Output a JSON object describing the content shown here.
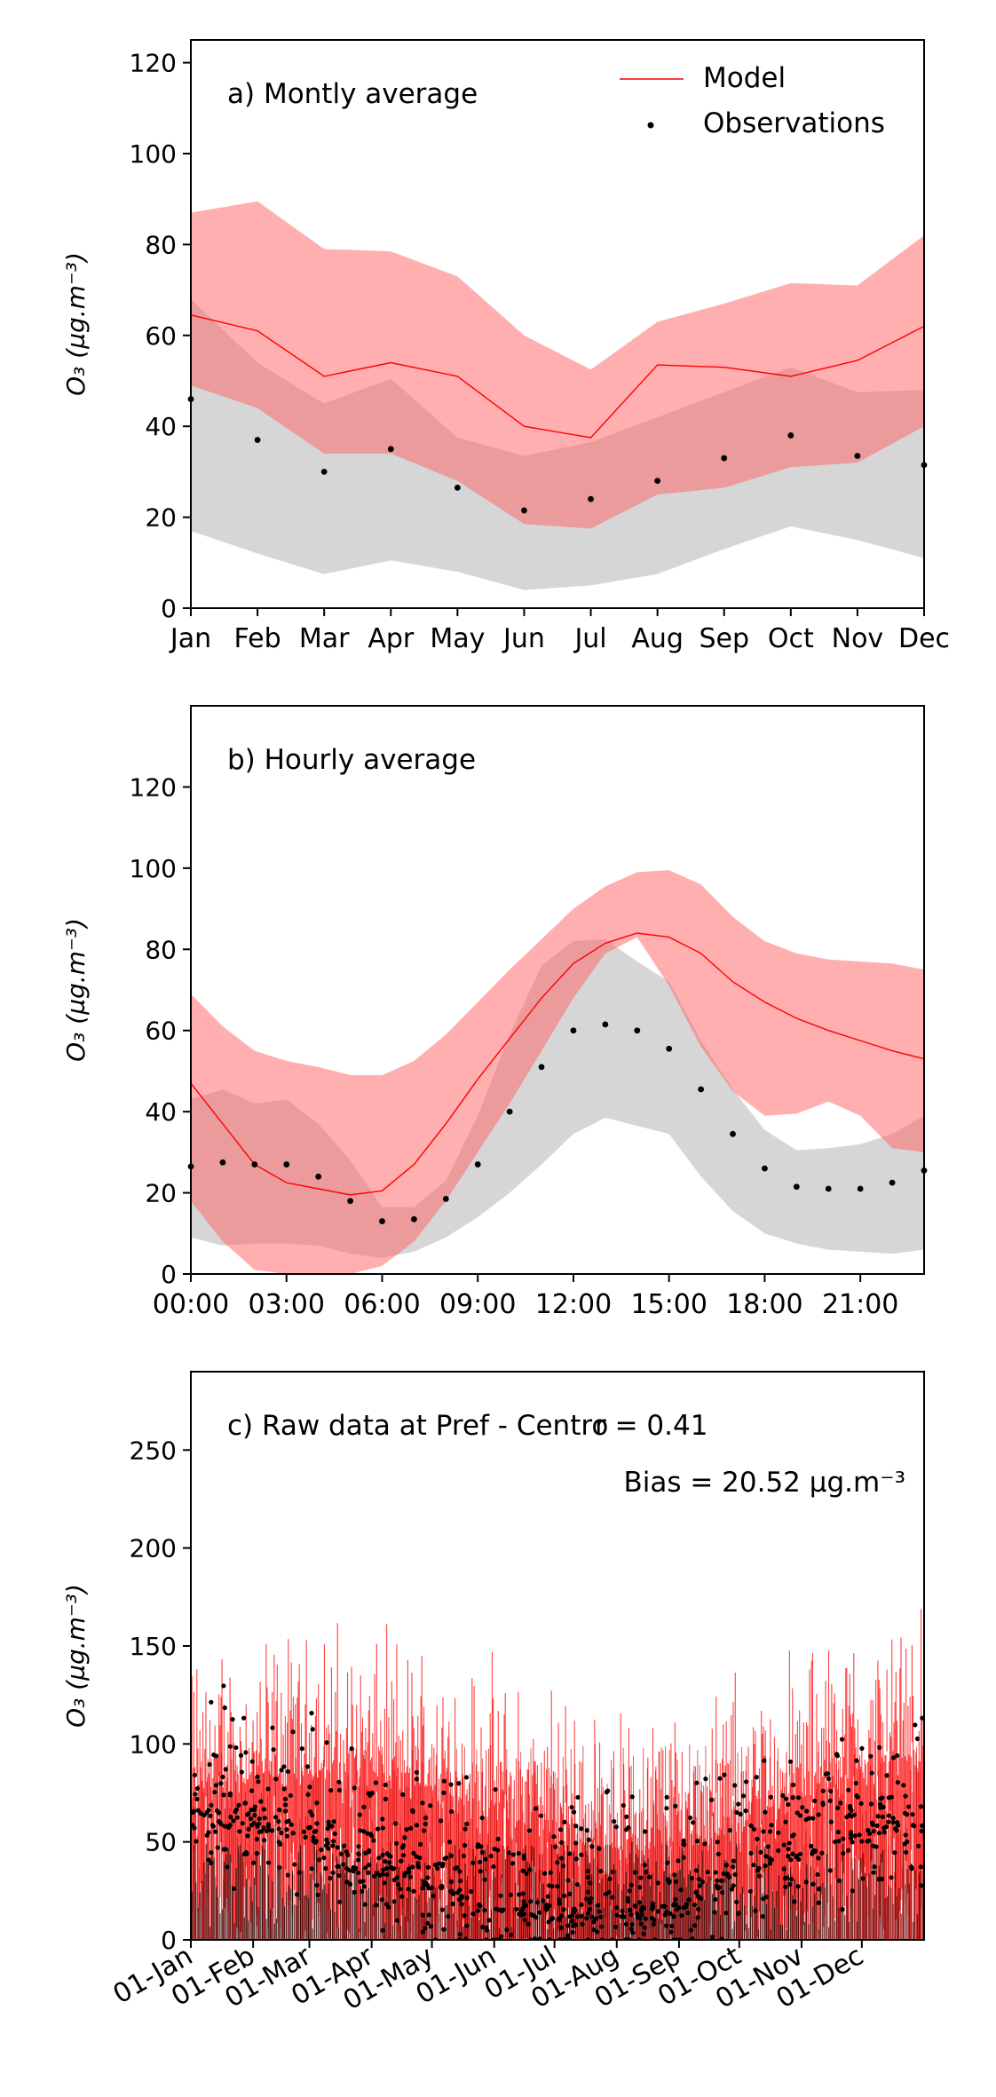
{
  "chart_data": [
    {
      "type": "line",
      "panel_label": "a) Montly average",
      "ylabel": "O₃ (µg.m⁻³)",
      "ylim": [
        0,
        125
      ],
      "yticks": [
        0,
        20,
        40,
        60,
        80,
        100,
        120
      ],
      "categories": [
        "Jan",
        "Feb",
        "Mar",
        "Apr",
        "May",
        "Jun",
        "Jul",
        "Aug",
        "Sep",
        "Oct",
        "Nov",
        "Dec"
      ],
      "legend": {
        "placement": "top-right",
        "entries": [
          "Model",
          "Observations"
        ]
      },
      "series": [
        {
          "name": "Model",
          "values": [
            64.5,
            61,
            51,
            54,
            51,
            40,
            37.5,
            53.5,
            53,
            51,
            54.5,
            62
          ],
          "color": "#ff0000"
        },
        {
          "name": "Observations",
          "values": [
            46,
            37,
            30,
            35,
            26.5,
            21.5,
            24,
            28,
            33,
            38,
            33.5,
            31.5
          ],
          "color": "#000000"
        }
      ],
      "bands": [
        {
          "of": "Model",
          "lower": [
            49,
            44,
            34,
            34,
            28,
            18.5,
            17.5,
            25,
            26.5,
            31,
            32,
            40
          ],
          "upper": [
            87,
            89.5,
            79,
            78.5,
            73,
            60,
            52.5,
            63,
            67,
            71.5,
            71,
            82
          ],
          "color": "#ff6666"
        },
        {
          "of": "Observations",
          "lower": [
            17,
            12,
            7.5,
            10.5,
            8,
            4,
            5,
            7.5,
            13,
            18,
            15,
            11
          ],
          "upper": [
            68,
            54,
            45,
            50.5,
            37.5,
            33.5,
            36.5,
            42,
            47.5,
            53,
            47.5,
            48
          ],
          "color": "#bbbbbb"
        }
      ]
    },
    {
      "type": "line",
      "panel_label": "b) Hourly average",
      "ylabel": "O₃ (µg.m⁻³)",
      "ylim": [
        0,
        140
      ],
      "yticks": [
        0,
        20,
        40,
        60,
        80,
        100,
        120
      ],
      "xlim": [
        0,
        23
      ],
      "xticks": [
        "00:00",
        "03:00",
        "06:00",
        "09:00",
        "12:00",
        "15:00",
        "18:00",
        "21:00"
      ],
      "series": [
        {
          "name": "Model",
          "values": [
            47,
            37,
            27,
            22.5,
            21,
            19.5,
            20.5,
            27,
            37,
            48,
            58,
            68,
            76.5,
            81.5,
            84,
            83,
            79,
            72,
            67,
            63,
            60,
            57.5,
            55,
            53
          ],
          "color": "#ff0000"
        },
        {
          "name": "Observations",
          "values": [
            26.5,
            27.5,
            27,
            27,
            24,
            18,
            13,
            13.5,
            18.5,
            27,
            40,
            51,
            60,
            61.5,
            60,
            55.5,
            45.5,
            34.5,
            26,
            21.5,
            21,
            21,
            22.5,
            25.5
          ],
          "color": "#000000"
        }
      ],
      "bands": [
        {
          "of": "Model",
          "lower": [
            18,
            8,
            1,
            0,
            0,
            0,
            2,
            8,
            18,
            30,
            42,
            55,
            68,
            79,
            83,
            71,
            56,
            45,
            39,
            39.5,
            42.5,
            39,
            31,
            30
          ],
          "upper": [
            69,
            61,
            55,
            52.5,
            51,
            49,
            49,
            52.5,
            59,
            67,
            75,
            82.5,
            90,
            95.5,
            99,
            99.5,
            96,
            88,
            82,
            79,
            77.5,
            77,
            76.5,
            75
          ],
          "color": "#ff6666"
        },
        {
          "of": "Observations",
          "lower": [
            9,
            7,
            7.5,
            7.5,
            7,
            5,
            4,
            5.5,
            9,
            14,
            20,
            27,
            34.5,
            38.5,
            36.5,
            34.5,
            24,
            15.5,
            10,
            7.5,
            6,
            5.5,
            5,
            6
          ],
          "upper": [
            43,
            45.5,
            42,
            43,
            37,
            28,
            16.5,
            16.5,
            23,
            39,
            59,
            76,
            82,
            82.5,
            77,
            72,
            57.5,
            45.5,
            35.5,
            30.5,
            31,
            32,
            34.5,
            39
          ],
          "color": "#bbbbbb"
        }
      ]
    },
    {
      "type": "line",
      "panel_label": "c) Raw data at Pref - Centro",
      "annotations": [
        "r = 0.41",
        "Bias = 20.52 µg.m⁻³"
      ],
      "ylabel": "O₃ (µg.m⁻³)",
      "ylim": [
        0,
        290
      ],
      "yticks": [
        0,
        50,
        100,
        150,
        200,
        250
      ],
      "x_range": [
        "01-Jan",
        "31-Dec"
      ],
      "xticks": [
        "01-Jan",
        "01-Feb",
        "01-Mar",
        "01-Apr",
        "01-May",
        "01-Jun",
        "01-Jul",
        "01-Aug",
        "01-Sep",
        "01-Oct",
        "01-Nov",
        "01-Dec"
      ],
      "series": [
        {
          "name": "Model",
          "color": "#ff0000",
          "note": "hourly model series, one year"
        },
        {
          "name": "Observations",
          "color": "#000000",
          "note": "hourly observations, one year"
        }
      ]
    }
  ]
}
